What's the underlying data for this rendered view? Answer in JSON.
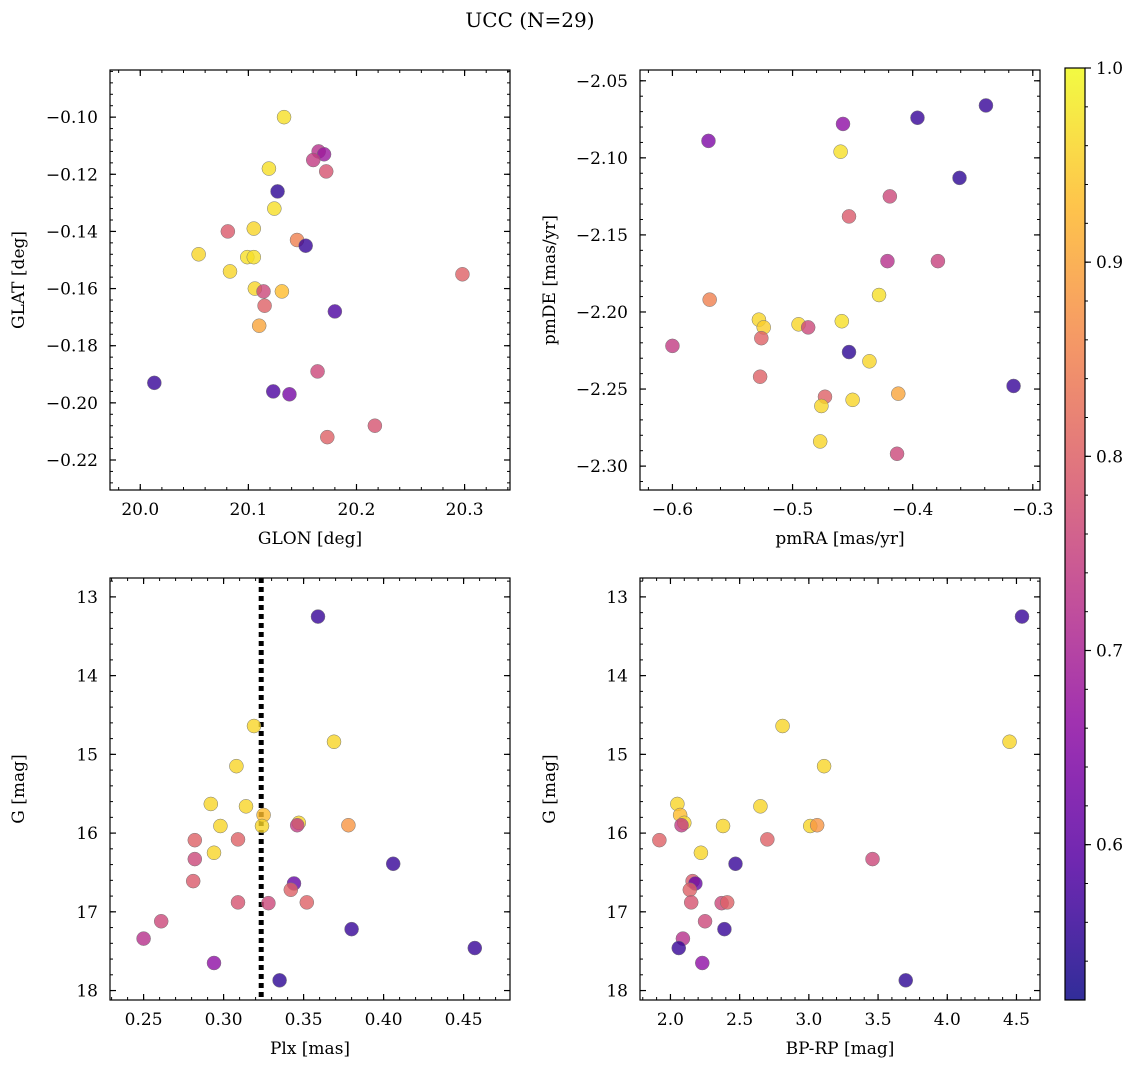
{
  "figure": {
    "suptitle": "UCC (N=29)"
  },
  "colorbar": {
    "colormap": "plasma",
    "vmin": 0.52,
    "vmax": 1.0,
    "ticks": [
      0.6,
      0.7,
      0.8,
      0.9,
      1.0
    ],
    "tick_labels": [
      "0.6",
      "0.7",
      "0.8",
      "0.9",
      "1.0"
    ]
  },
  "chart_data": [
    {
      "type": "scatter",
      "id": "glon_glat",
      "xlabel": "GLON [deg]",
      "ylabel": "GLAT [deg]",
      "xlim": [
        19.972,
        20.342
      ],
      "ylim": [
        -0.2305,
        -0.0835
      ],
      "xticks": [
        20.0,
        20.1,
        20.2,
        20.3
      ],
      "xtick_labels": [
        "20.0",
        "20.1",
        "20.2",
        "20.3"
      ],
      "yticks": [
        -0.22,
        -0.2,
        -0.18,
        -0.16,
        -0.14,
        -0.12,
        -0.1
      ],
      "ytick_labels": [
        "−0.22",
        "−0.20",
        "−0.18",
        "−0.16",
        "−0.14",
        "−0.12",
        "−0.10"
      ],
      "points": [
        {
          "x": 20.133,
          "y": -0.1,
          "c": 0.97
        },
        {
          "x": 20.165,
          "y": -0.112,
          "c": 0.72
        },
        {
          "x": 20.17,
          "y": -0.113,
          "c": 0.68
        },
        {
          "x": 20.16,
          "y": -0.115,
          "c": 0.74
        },
        {
          "x": 20.119,
          "y": -0.118,
          "c": 0.97
        },
        {
          "x": 20.172,
          "y": -0.119,
          "c": 0.78
        },
        {
          "x": 20.127,
          "y": -0.126,
          "c": 0.55
        },
        {
          "x": 20.124,
          "y": -0.132,
          "c": 0.97
        },
        {
          "x": 20.105,
          "y": -0.139,
          "c": 0.96
        },
        {
          "x": 20.081,
          "y": -0.14,
          "c": 0.79
        },
        {
          "x": 20.145,
          "y": -0.143,
          "c": 0.85
        },
        {
          "x": 20.153,
          "y": -0.145,
          "c": 0.56
        },
        {
          "x": 20.054,
          "y": -0.148,
          "c": 0.96
        },
        {
          "x": 20.099,
          "y": -0.149,
          "c": 0.97
        },
        {
          "x": 20.105,
          "y": -0.149,
          "c": 0.97
        },
        {
          "x": 20.083,
          "y": -0.154,
          "c": 0.96
        },
        {
          "x": 20.298,
          "y": -0.155,
          "c": 0.8
        },
        {
          "x": 20.106,
          "y": -0.16,
          "c": 0.96
        },
        {
          "x": 20.131,
          "y": -0.161,
          "c": 0.93
        },
        {
          "x": 20.114,
          "y": -0.161,
          "c": 0.76
        },
        {
          "x": 20.115,
          "y": -0.166,
          "c": 0.8
        },
        {
          "x": 20.18,
          "y": -0.168,
          "c": 0.58
        },
        {
          "x": 20.11,
          "y": -0.173,
          "c": 0.9
        },
        {
          "x": 20.164,
          "y": -0.189,
          "c": 0.76
        },
        {
          "x": 20.013,
          "y": -0.193,
          "c": 0.56
        },
        {
          "x": 20.123,
          "y": -0.196,
          "c": 0.58
        },
        {
          "x": 20.138,
          "y": -0.197,
          "c": 0.63
        },
        {
          "x": 20.217,
          "y": -0.208,
          "c": 0.78
        },
        {
          "x": 20.173,
          "y": -0.212,
          "c": 0.8
        }
      ]
    },
    {
      "type": "scatter",
      "id": "pmra_pmde",
      "xlabel": "pmRA [mas/yr]",
      "ylabel": "pmDE [mas/yr]",
      "xlim": [
        -0.627,
        -0.294
      ],
      "ylim": [
        -2.3155,
        -2.043
      ],
      "xticks": [
        -0.6,
        -0.5,
        -0.4,
        -0.3
      ],
      "xtick_labels": [
        "−0.6",
        "−0.5",
        "−0.4",
        "−0.3"
      ],
      "yticks": [
        -2.3,
        -2.25,
        -2.2,
        -2.15,
        -2.1,
        -2.05
      ],
      "ytick_labels": [
        "−2.30",
        "−2.25",
        "−2.20",
        "−2.15",
        "−2.10",
        "−2.05"
      ],
      "points": [
        {
          "x": -0.339,
          "y": -2.066,
          "c": 0.56
        },
        {
          "x": -0.396,
          "y": -2.074,
          "c": 0.56
        },
        {
          "x": -0.458,
          "y": -2.078,
          "c": 0.66
        },
        {
          "x": -0.57,
          "y": -2.089,
          "c": 0.64
        },
        {
          "x": -0.46,
          "y": -2.096,
          "c": 0.97
        },
        {
          "x": -0.361,
          "y": -2.113,
          "c": 0.55
        },
        {
          "x": -0.419,
          "y": -2.125,
          "c": 0.76
        },
        {
          "x": -0.453,
          "y": -2.138,
          "c": 0.79
        },
        {
          "x": -0.421,
          "y": -2.167,
          "c": 0.72
        },
        {
          "x": -0.379,
          "y": -2.167,
          "c": 0.75
        },
        {
          "x": -0.428,
          "y": -2.189,
          "c": 0.97
        },
        {
          "x": -0.569,
          "y": -2.192,
          "c": 0.85
        },
        {
          "x": -0.528,
          "y": -2.205,
          "c": 0.96
        },
        {
          "x": -0.459,
          "y": -2.206,
          "c": 0.97
        },
        {
          "x": -0.495,
          "y": -2.208,
          "c": 0.96
        },
        {
          "x": -0.524,
          "y": -2.21,
          "c": 0.95
        },
        {
          "x": -0.487,
          "y": -2.21,
          "c": 0.76
        },
        {
          "x": -0.526,
          "y": -2.217,
          "c": 0.8
        },
        {
          "x": -0.6,
          "y": -2.222,
          "c": 0.74
        },
        {
          "x": -0.453,
          "y": -2.226,
          "c": 0.55
        },
        {
          "x": -0.436,
          "y": -2.232,
          "c": 0.96
        },
        {
          "x": -0.527,
          "y": -2.242,
          "c": 0.8
        },
        {
          "x": -0.316,
          "y": -2.248,
          "c": 0.56
        },
        {
          "x": -0.412,
          "y": -2.253,
          "c": 0.9
        },
        {
          "x": -0.473,
          "y": -2.255,
          "c": 0.8
        },
        {
          "x": -0.45,
          "y": -2.257,
          "c": 0.96
        },
        {
          "x": -0.476,
          "y": -2.261,
          "c": 0.96
        },
        {
          "x": -0.477,
          "y": -2.284,
          "c": 0.96
        },
        {
          "x": -0.413,
          "y": -2.292,
          "c": 0.76
        }
      ]
    },
    {
      "type": "scatter",
      "id": "plx_g",
      "xlabel": "Plx [mas]",
      "ylabel": "G [mag]",
      "xlim": [
        0.229,
        0.479
      ],
      "ylim": [
        18.12,
        12.76
      ],
      "y_inverted": true,
      "vline": 0.3235,
      "xticks": [
        0.25,
        0.3,
        0.35,
        0.4,
        0.45
      ],
      "xtick_labels": [
        "0.25",
        "0.30",
        "0.35",
        "0.40",
        "0.45"
      ],
      "yticks": [
        13,
        14,
        15,
        16,
        17,
        18
      ],
      "ytick_labels": [
        "13",
        "14",
        "15",
        "16",
        "17",
        "18"
      ],
      "points": [
        {
          "x": 0.359,
          "y": 13.25,
          "c": 0.56
        },
        {
          "x": 0.319,
          "y": 14.64,
          "c": 0.96
        },
        {
          "x": 0.369,
          "y": 14.84,
          "c": 0.96
        },
        {
          "x": 0.308,
          "y": 15.15,
          "c": 0.96
        },
        {
          "x": 0.292,
          "y": 15.63,
          "c": 0.96
        },
        {
          "x": 0.314,
          "y": 15.66,
          "c": 0.96
        },
        {
          "x": 0.325,
          "y": 15.77,
          "c": 0.93
        },
        {
          "x": 0.347,
          "y": 15.87,
          "c": 0.96
        },
        {
          "x": 0.346,
          "y": 15.9,
          "c": 0.74
        },
        {
          "x": 0.298,
          "y": 15.91,
          "c": 0.96
        },
        {
          "x": 0.324,
          "y": 15.91,
          "c": 0.96
        },
        {
          "x": 0.378,
          "y": 15.9,
          "c": 0.88
        },
        {
          "x": 0.282,
          "y": 16.09,
          "c": 0.8
        },
        {
          "x": 0.309,
          "y": 16.08,
          "c": 0.8
        },
        {
          "x": 0.294,
          "y": 16.25,
          "c": 0.96
        },
        {
          "x": 0.282,
          "y": 16.33,
          "c": 0.76
        },
        {
          "x": 0.406,
          "y": 16.39,
          "c": 0.56
        },
        {
          "x": 0.281,
          "y": 16.61,
          "c": 0.79
        },
        {
          "x": 0.344,
          "y": 16.64,
          "c": 0.61
        },
        {
          "x": 0.342,
          "y": 16.72,
          "c": 0.8
        },
        {
          "x": 0.309,
          "y": 16.88,
          "c": 0.78
        },
        {
          "x": 0.328,
          "y": 16.89,
          "c": 0.76
        },
        {
          "x": 0.352,
          "y": 16.88,
          "c": 0.8
        },
        {
          "x": 0.261,
          "y": 17.12,
          "c": 0.76
        },
        {
          "x": 0.38,
          "y": 17.22,
          "c": 0.56
        },
        {
          "x": 0.25,
          "y": 17.34,
          "c": 0.72
        },
        {
          "x": 0.457,
          "y": 17.46,
          "c": 0.56
        },
        {
          "x": 0.294,
          "y": 17.65,
          "c": 0.66
        },
        {
          "x": 0.335,
          "y": 17.87,
          "c": 0.55
        }
      ]
    },
    {
      "type": "scatter",
      "id": "bprp_g",
      "xlabel": "BP-RP [mag]",
      "ylabel": "G [mag]",
      "xlim": [
        1.78,
        4.67
      ],
      "ylim": [
        18.12,
        12.76
      ],
      "y_inverted": true,
      "xticks": [
        2.0,
        2.5,
        3.0,
        3.5,
        4.0,
        4.5
      ],
      "xtick_labels": [
        "2.0",
        "2.5",
        "3.0",
        "3.5",
        "4.0",
        "4.5"
      ],
      "yticks": [
        13,
        14,
        15,
        16,
        17,
        18
      ],
      "ytick_labels": [
        "13",
        "14",
        "15",
        "16",
        "17",
        "18"
      ],
      "points": [
        {
          "x": 4.54,
          "y": 13.25,
          "c": 0.56
        },
        {
          "x": 2.81,
          "y": 14.64,
          "c": 0.96
        },
        {
          "x": 4.45,
          "y": 14.84,
          "c": 0.96
        },
        {
          "x": 3.11,
          "y": 15.15,
          "c": 0.96
        },
        {
          "x": 2.05,
          "y": 15.63,
          "c": 0.96
        },
        {
          "x": 2.65,
          "y": 15.66,
          "c": 0.96
        },
        {
          "x": 2.07,
          "y": 15.77,
          "c": 0.93
        },
        {
          "x": 2.1,
          "y": 15.87,
          "c": 0.96
        },
        {
          "x": 2.08,
          "y": 15.9,
          "c": 0.74
        },
        {
          "x": 2.38,
          "y": 15.91,
          "c": 0.96
        },
        {
          "x": 3.01,
          "y": 15.91,
          "c": 0.96
        },
        {
          "x": 3.06,
          "y": 15.9,
          "c": 0.88
        },
        {
          "x": 1.92,
          "y": 16.09,
          "c": 0.8
        },
        {
          "x": 2.7,
          "y": 16.08,
          "c": 0.8
        },
        {
          "x": 2.22,
          "y": 16.25,
          "c": 0.96
        },
        {
          "x": 3.46,
          "y": 16.33,
          "c": 0.76
        },
        {
          "x": 2.47,
          "y": 16.39,
          "c": 0.56
        },
        {
          "x": 2.16,
          "y": 16.61,
          "c": 0.79
        },
        {
          "x": 2.18,
          "y": 16.64,
          "c": 0.61
        },
        {
          "x": 2.14,
          "y": 16.72,
          "c": 0.8
        },
        {
          "x": 2.15,
          "y": 16.88,
          "c": 0.78
        },
        {
          "x": 2.37,
          "y": 16.89,
          "c": 0.76
        },
        {
          "x": 2.41,
          "y": 16.88,
          "c": 0.8
        },
        {
          "x": 2.25,
          "y": 17.12,
          "c": 0.76
        },
        {
          "x": 2.39,
          "y": 17.22,
          "c": 0.56
        },
        {
          "x": 2.09,
          "y": 17.34,
          "c": 0.72
        },
        {
          "x": 2.06,
          "y": 17.46,
          "c": 0.56
        },
        {
          "x": 2.23,
          "y": 17.65,
          "c": 0.66
        },
        {
          "x": 3.7,
          "y": 17.87,
          "c": 0.55
        }
      ]
    }
  ]
}
